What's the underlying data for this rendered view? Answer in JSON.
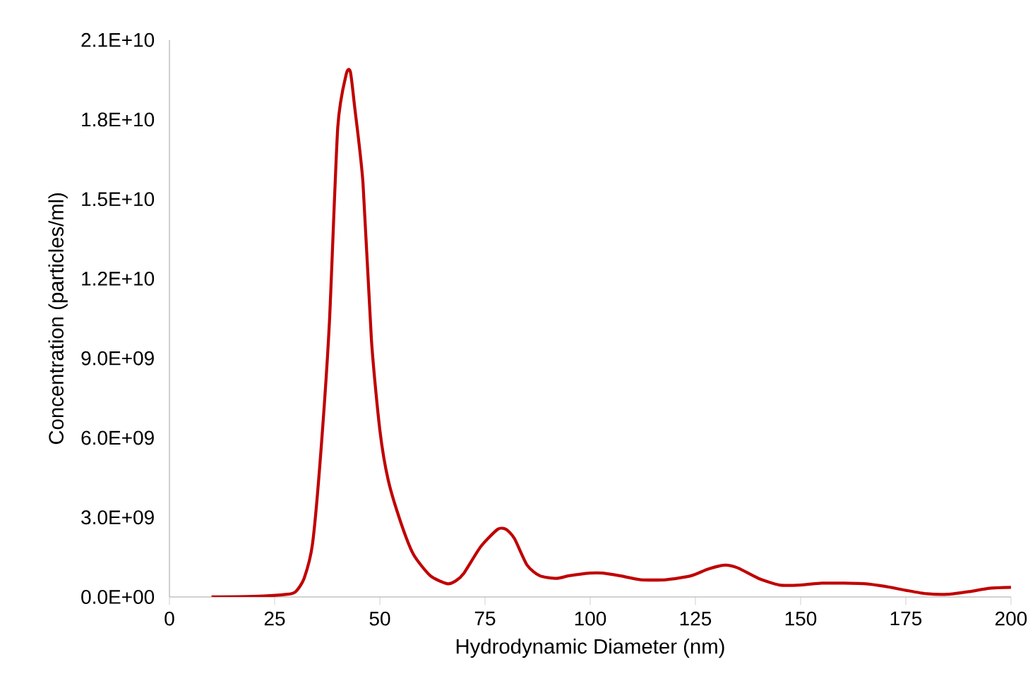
{
  "chart_data": {
    "type": "line",
    "xlabel": "Hydrodynamic Diameter (nm)",
    "ylabel": "Concentration (particles/ml)",
    "color": "#c00000",
    "xlim": [
      0,
      200
    ],
    "xticks": [
      0,
      25,
      50,
      75,
      100,
      125,
      150,
      175,
      200
    ],
    "ylim": [
      0,
      21000000000
    ],
    "yticks": [
      {
        "value": 0,
        "label": "0.0E+00"
      },
      {
        "value": 3000000000,
        "label": "3.0E+09"
      },
      {
        "value": 6000000000,
        "label": "6.0E+09"
      },
      {
        "value": 9000000000,
        "label": "9.0E+09"
      },
      {
        "value": 12000000000,
        "label": "1.2E+10"
      },
      {
        "value": 15000000000,
        "label": "1.5E+10"
      },
      {
        "value": 18000000000,
        "label": "1.8E+10"
      },
      {
        "value": 21000000000,
        "label": "2.1E+10"
      }
    ],
    "x": [
      10,
      20,
      28,
      30,
      32,
      34,
      36,
      38,
      40,
      42,
      43,
      44,
      46,
      48,
      50,
      52,
      55,
      58,
      62,
      66,
      68,
      70,
      74,
      78,
      80,
      82,
      85,
      88,
      92,
      95,
      100,
      103,
      107,
      112,
      118,
      124,
      128,
      132,
      135,
      140,
      145,
      150,
      155,
      160,
      165,
      170,
      175,
      180,
      185,
      190,
      195,
      200
    ],
    "values": [
      0,
      20000000,
      100000000,
      200000000,
      700000000,
      2000000000,
      5500000000,
      10300000000,
      17700000000,
      19700000000,
      19800000000,
      18500000000,
      15600000000,
      9700000000,
      6300000000,
      4400000000,
      2800000000,
      1600000000,
      800000000,
      500000000,
      600000000,
      900000000,
      1900000000,
      2550000000,
      2550000000,
      2200000000,
      1200000000,
      800000000,
      700000000,
      800000000,
      900000000,
      900000000,
      800000000,
      650000000,
      650000000,
      800000000,
      1050000000,
      1200000000,
      1100000000,
      700000000,
      450000000,
      450000000,
      520000000,
      520000000,
      500000000,
      400000000,
      250000000,
      120000000,
      100000000,
      200000000,
      330000000,
      360000000
    ]
  }
}
